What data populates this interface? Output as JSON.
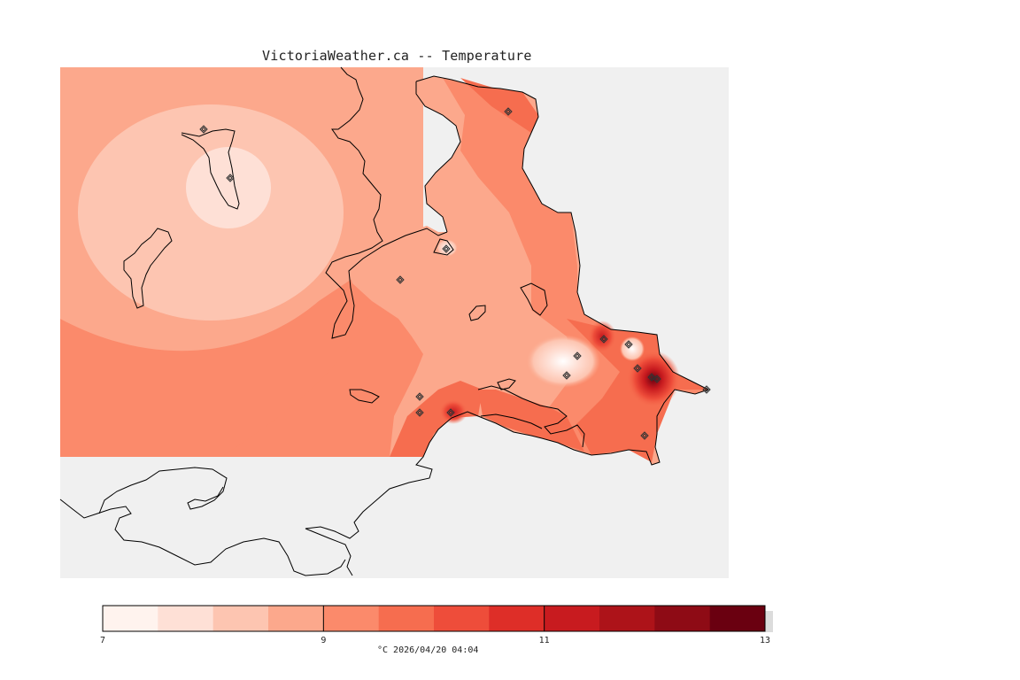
{
  "map": {
    "title": "VictoriaWeather.ca -- Temperature",
    "caption": "°C  2026/04/20 04:04",
    "colorbar": {
      "min": 7,
      "max": 13,
      "tick_labels": [
        "7",
        "9",
        "11",
        "13"
      ],
      "colors": [
        "#fff3ee",
        "#fee0d6",
        "#fdc5b1",
        "#fca88c",
        "#fb8a6b",
        "#f66d4f",
        "#ee4d3a",
        "#de2e28",
        "#c81b1f",
        "#ad1319",
        "#8e0b15",
        "#6a0010"
      ]
    },
    "stations": 17,
    "colors": {
      "water": "#f0f0f0",
      "land_field": "#fca88c",
      "coastline": "#000000"
    }
  }
}
